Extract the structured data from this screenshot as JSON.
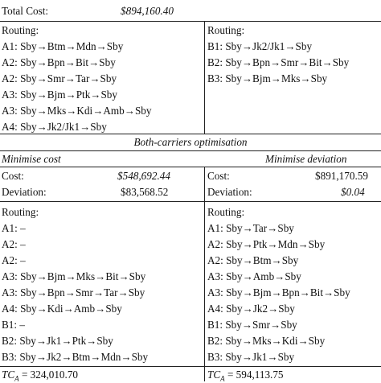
{
  "top": {
    "total_cost_label": "Total Cost:",
    "total_cost_value": "$894,160.40",
    "left": {
      "routing_label": "Routing:",
      "routes": [
        "A1: Sby→Btm→Mdn→Sby",
        "A2: Sby→Bpn→Bit→Sby",
        "A2: Sby→Smr→Tar→Sby",
        "A3: Sby→Bjm→Ptk→Sby",
        "A3: Sby→Mks→Kdi→Amb→Sby",
        "A4: Sby→Jk2/Jk1→Sby"
      ]
    },
    "right": {
      "routing_label": "Routing:",
      "routes": [
        "B1: Sby→Jk2/Jk1→Sby",
        "B2: Sby→Bpn→Smr→Bit→Sby",
        "B3: Sby→Bjm→Mks→Sby"
      ]
    }
  },
  "both": {
    "section_title": "Both-carriers optimisation",
    "left": {
      "heading": "Minimise cost",
      "cost_label": "Cost:",
      "cost_value": "$548,692.44",
      "deviation_label": "Deviation:",
      "deviation_value": "$83,568.52",
      "routing_label": "Routing:",
      "routes": [
        "A1: –",
        "A2: –",
        "A2: –",
        "A3: Sby→Bjm→Mks→Bit→Sby",
        "A3: Sby→Bpn→Smr→Tar→Sby",
        "A4: Sby→Kdi→Amb→Sby",
        "B1: –",
        "B2: Sby→Jk1→Ptk→Sby",
        "B3: Sby→Jk2→Btm→Mdn→Sby"
      ],
      "tc_label": "TC",
      "tc_sub": "A",
      "tc_value": " = 324,010.70"
    },
    "right": {
      "heading": "Minimise deviation",
      "cost_label": "Cost:",
      "cost_value": "$891,170.59",
      "deviation_label": "Deviation:",
      "deviation_value": "$0.04",
      "routing_label": "Routing:",
      "routes": [
        "A1: Sby→Tar→Sby",
        "A2: Sby→Ptk→Mdn→Sby",
        "A2: Sby→Btm→Sby",
        "A3: Sby→Amb→Sby",
        "A3: Sby→Bjm→Bpn→Bit→Sby",
        "A4: Sby→Jk2→Sby",
        "B1: Sby→Smr→Sby",
        "B2: Sby→Mks→Kdi→Sby",
        "B3: Sby→Jk1→Sby"
      ],
      "tc_label": "TC",
      "tc_sub": "A",
      "tc_value": " = 594,113.75"
    }
  }
}
